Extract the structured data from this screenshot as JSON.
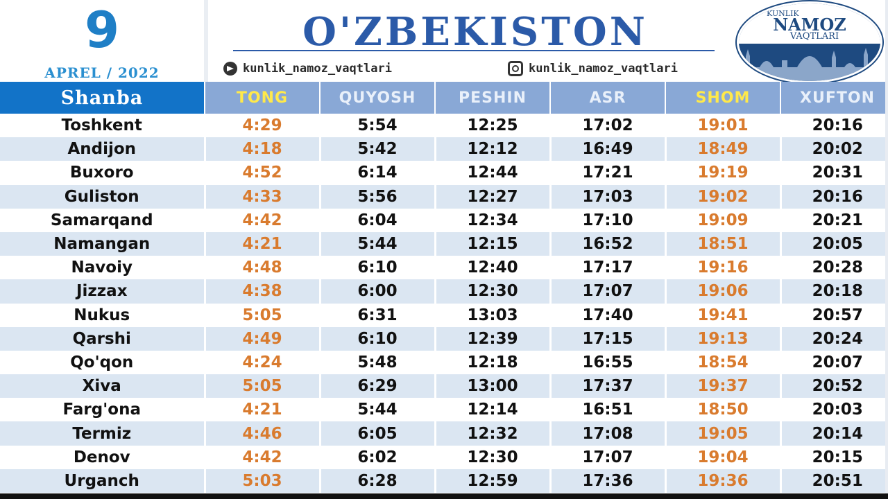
{
  "date": {
    "day": "9",
    "month_year": "APREL / 2022"
  },
  "header": {
    "title": "O'ZBEKISTON",
    "telegram": "kunlik_namoz_vaqtlari",
    "instagram": "kunlik_namoz_vaqtlari"
  },
  "logo": {
    "line1": "KUNLIK",
    "line2": "NAMOZ",
    "line3": "VAQTLARI"
  },
  "colors": {
    "accent_blue": "#1273c8",
    "header_blue": "#89a8d6",
    "orange": "#d97b2e",
    "highlight_yellow": "#ffe94a",
    "row_stripe": "#dbe6f2"
  },
  "table": {
    "columns": [
      "Shanba",
      "TONG",
      "QUYOSH",
      "PESHIN",
      "ASR",
      "SHOM",
      "XUFTON"
    ],
    "rows": [
      [
        "Toshkent",
        "4:29",
        "5:54",
        "12:25",
        "17:02",
        "19:01",
        "20:16"
      ],
      [
        "Andijon",
        "4:18",
        "5:42",
        "12:12",
        "16:49",
        "18:49",
        "20:02"
      ],
      [
        "Buxoro",
        "4:52",
        "6:14",
        "12:44",
        "17:21",
        "19:19",
        "20:31"
      ],
      [
        "Guliston",
        "4:33",
        "5:56",
        "12:27",
        "17:03",
        "19:02",
        "20:16"
      ],
      [
        "Samarqand",
        "4:42",
        "6:04",
        "12:34",
        "17:10",
        "19:09",
        "20:21"
      ],
      [
        "Namangan",
        "4:21",
        "5:44",
        "12:15",
        "16:52",
        "18:51",
        "20:05"
      ],
      [
        "Navoiy",
        "4:48",
        "6:10",
        "12:40",
        "17:17",
        "19:16",
        "20:28"
      ],
      [
        "Jizzax",
        "4:38",
        "6:00",
        "12:30",
        "17:07",
        "19:06",
        "20:18"
      ],
      [
        "Nukus",
        "5:05",
        "6:31",
        "13:03",
        "17:40",
        "19:41",
        "20:57"
      ],
      [
        "Qarshi",
        "4:49",
        "6:10",
        "12:39",
        "17:15",
        "19:13",
        "20:24"
      ],
      [
        "Qo'qon",
        "4:24",
        "5:48",
        "12:18",
        "16:55",
        "18:54",
        "20:07"
      ],
      [
        "Xiva",
        "5:05",
        "6:29",
        "13:00",
        "17:37",
        "19:37",
        "20:52"
      ],
      [
        "Farg'ona",
        "4:21",
        "5:44",
        "12:14",
        "16:51",
        "18:50",
        "20:03"
      ],
      [
        "Termiz",
        "4:46",
        "6:05",
        "12:32",
        "17:08",
        "19:05",
        "20:14"
      ],
      [
        "Denov",
        "4:42",
        "6:02",
        "12:30",
        "17:07",
        "19:04",
        "20:15"
      ],
      [
        "Urganch",
        "5:03",
        "6:28",
        "12:59",
        "17:36",
        "19:36",
        "20:51"
      ]
    ]
  }
}
